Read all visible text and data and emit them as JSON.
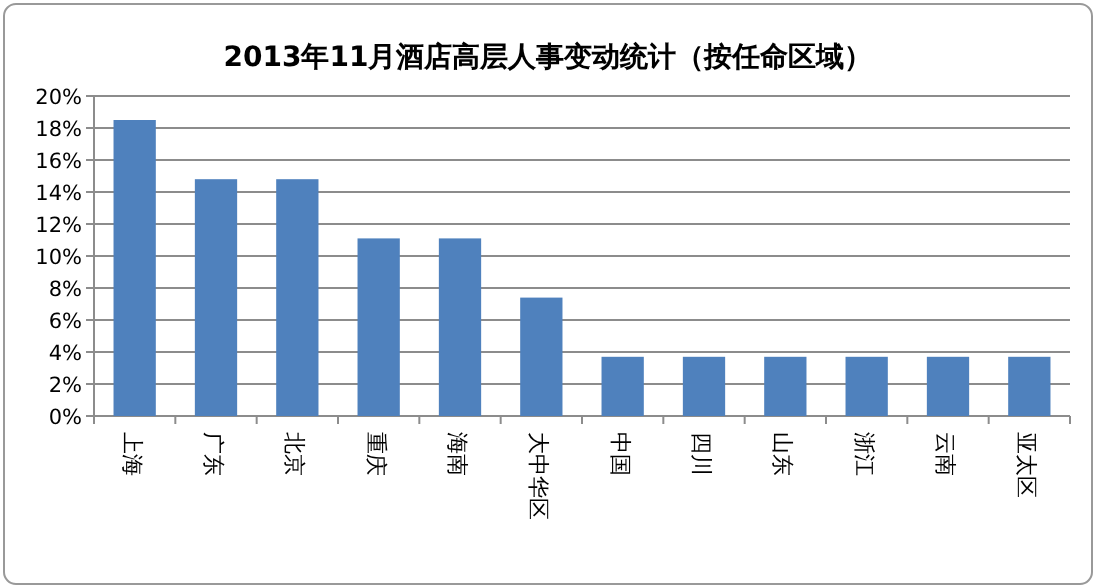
{
  "chart_data": {
    "type": "bar",
    "title": "2013年11月酒店高层人事变动统计（按任命区域）",
    "categories": [
      "上海",
      "广东",
      "北京",
      "重庆",
      "海南",
      "大中华区",
      "中国",
      "四川",
      "山东",
      "浙江",
      "云南",
      "亚太区"
    ],
    "values": [
      18.5,
      14.8,
      14.8,
      11.1,
      11.1,
      7.4,
      3.7,
      3.7,
      3.7,
      3.7,
      3.7,
      3.7
    ],
    "color": "#4f81bd",
    "ylim": [
      0,
      20
    ],
    "yticks": [
      {
        "value": 0,
        "label": "0%"
      },
      {
        "value": 2,
        "label": "2%"
      },
      {
        "value": 4,
        "label": "4%"
      },
      {
        "value": 6,
        "label": "6%"
      },
      {
        "value": 8,
        "label": "8%"
      },
      {
        "value": 10,
        "label": "10%"
      },
      {
        "value": 12,
        "label": "12%"
      },
      {
        "value": 14,
        "label": "14%"
      },
      {
        "value": 16,
        "label": "16%"
      },
      {
        "value": 18,
        "label": "18%"
      },
      {
        "value": 20,
        "label": "20%"
      }
    ],
    "grid": "y"
  }
}
